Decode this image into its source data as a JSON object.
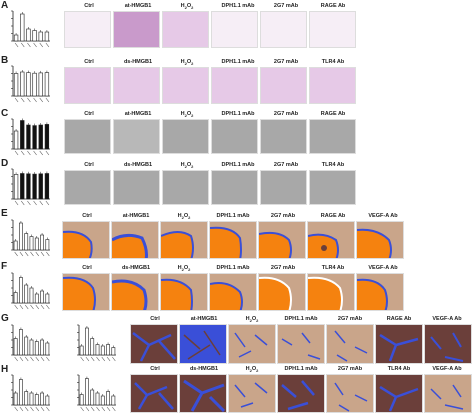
{
  "figure": {
    "rows": [
      {
        "label": "A",
        "headers": [
          "Ctrl",
          "at-HMGB1",
          "H2O2",
          "DPH1.1 mAb",
          "2G7 mAb",
          "RAGE Ab"
        ],
        "chart_data": {
          "type": "bar",
          "values": [
            20,
            90,
            40,
            35,
            30,
            30
          ],
          "ylim": [
            0,
            100
          ]
        },
        "tile_kind": "invasion"
      },
      {
        "label": "B",
        "headers": [
          "Ctrl",
          "ds-HMGB1",
          "H2O2",
          "DPH1.1 mAb",
          "2G7 mAb",
          "TLR4 Ab"
        ],
        "chart_data": {
          "type": "bar",
          "values": [
            75,
            80,
            78,
            76,
            77,
            78
          ],
          "ylim": [
            0,
            100
          ]
        },
        "tile_kind": "invasion"
      },
      {
        "label": "C",
        "headers": [
          "Ctrl",
          "at-HMGB1",
          "H2O2",
          "DPH1.1 mAb",
          "2G7 mAb",
          "RAGE Ab"
        ],
        "chart_data": {
          "type": "bar",
          "values": [
            60,
            95,
            80,
            78,
            80,
            82
          ],
          "ylim": [
            0,
            100
          ]
        },
        "tile_kind": "wound"
      },
      {
        "label": "D",
        "headers": [
          "Ctrl",
          "ds-HMGB1",
          "H2O2",
          "DPH1.1 mAb",
          "2G7 mAb",
          "TLR4 Ab"
        ],
        "chart_data": {
          "type": "bar",
          "values": [
            82,
            85,
            84,
            83,
            84,
            85
          ],
          "ylim": [
            0,
            100
          ]
        },
        "tile_kind": "wound"
      },
      {
        "label": "E",
        "headers": [
          "Ctrl",
          "at-HMGB1",
          "H2O2",
          "DPH1.1 mAb",
          "2G7 mAb",
          "RAGE Ab",
          "VEGF-A Ab"
        ],
        "chart_data": {
          "type": "bar",
          "values": [
            30,
            90,
            55,
            45,
            40,
            50,
            35
          ],
          "ylim": [
            0,
            100
          ]
        },
        "tile_kind": "ring"
      },
      {
        "label": "F",
        "headers": [
          "Ctrl",
          "ds-HMGB1",
          "H2O2",
          "DPH1.1 mAb",
          "2G7 mAb",
          "TLR4 Ab",
          "VEGF-A Ab"
        ],
        "chart_data": {
          "type": "bar",
          "values": [
            35,
            85,
            60,
            50,
            30,
            40,
            30
          ],
          "ylim": [
            0,
            100
          ]
        },
        "tile_kind": "ring"
      },
      {
        "label": "G",
        "headers": [
          "Ctrl",
          "at-HMGB1",
          "H2O2",
          "DPH1.1 mAb",
          "2G7 mAb",
          "RAGE Ab",
          "VEGF-A Ab"
        ],
        "chart_data": [
          {
            "type": "bar",
            "values": [
              55,
              85,
              60,
              50,
              45,
              50,
              40
            ],
            "ylim": [
              0,
              100
            ]
          },
          {
            "type": "bar",
            "values": [
              30,
              90,
              55,
              35,
              30,
              35,
              25
            ],
            "ylim": [
              0,
              100
            ]
          }
        ],
        "tile_kind": "tube"
      },
      {
        "label": "H",
        "headers": [
          "Ctrl",
          "ds-HMGB1",
          "H2O2",
          "DPH1.1 mAb",
          "2G7 mAb",
          "TLR4 Ab",
          "VEGF-A Ab"
        ],
        "chart_data": [
          {
            "type": "bar",
            "values": [
              40,
              85,
              45,
              40,
              35,
              40,
              30
            ],
            "ylim": [
              0,
              100
            ]
          },
          {
            "type": "bar",
            "values": [
              35,
              88,
              50,
              40,
              30,
              45,
              30
            ],
            "ylim": [
              0,
              100
            ]
          }
        ],
        "tile_kind": "tube"
      }
    ],
    "colors": {
      "bar_fill": "#ffffff",
      "bar_stroke": "#222222",
      "bar_black": "#111111",
      "orange": "#f5820f",
      "blue": "#3a4fd8"
    }
  }
}
